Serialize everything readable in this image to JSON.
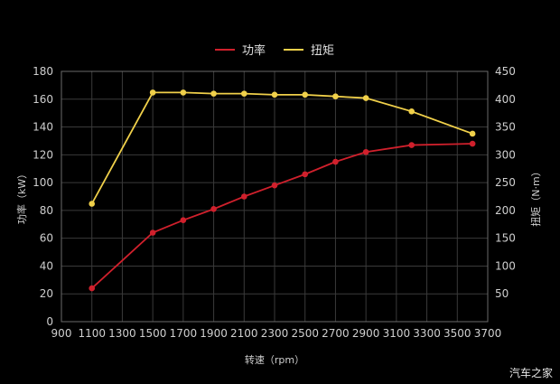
{
  "chart_data": {
    "type": "line",
    "x_label": "转速（rpm）",
    "y_left_label": "功率（kW）",
    "y_right_label": "扭矩（N·m）",
    "x_ticks": [
      900,
      1100,
      1300,
      1500,
      1700,
      1900,
      2100,
      2300,
      2500,
      2700,
      2900,
      3100,
      3300,
      3500,
      3700
    ],
    "xlim": [
      900,
      3700
    ],
    "y_left_ticks": [
      0,
      20,
      40,
      60,
      80,
      100,
      120,
      140,
      160,
      180
    ],
    "ylim_left": [
      0,
      180
    ],
    "y_right_ticks": [
      50,
      100,
      150,
      200,
      250,
      300,
      350,
      400,
      450
    ],
    "ylim_right": [
      0,
      450
    ],
    "grid": true,
    "legend_position": "top-center",
    "series": [
      {
        "name": "功率",
        "axis": "left",
        "color": "#d0202c",
        "x": [
          1100,
          1500,
          1700,
          1900,
          2100,
          2300,
          2500,
          2700,
          2900,
          3200,
          3600
        ],
        "y": [
          24,
          64,
          73,
          81,
          90,
          98,
          106,
          115,
          122,
          127,
          128
        ]
      },
      {
        "name": "扭矩",
        "axis": "right",
        "color": "#f0d04a",
        "x": [
          1100,
          1500,
          1700,
          1900,
          2100,
          2300,
          2500,
          2700,
          2900,
          3200,
          3600
        ],
        "y": [
          212,
          412,
          412,
          410,
          410,
          408,
          408,
          405,
          402,
          378,
          338
        ]
      }
    ]
  },
  "watermark": "汽车之家"
}
